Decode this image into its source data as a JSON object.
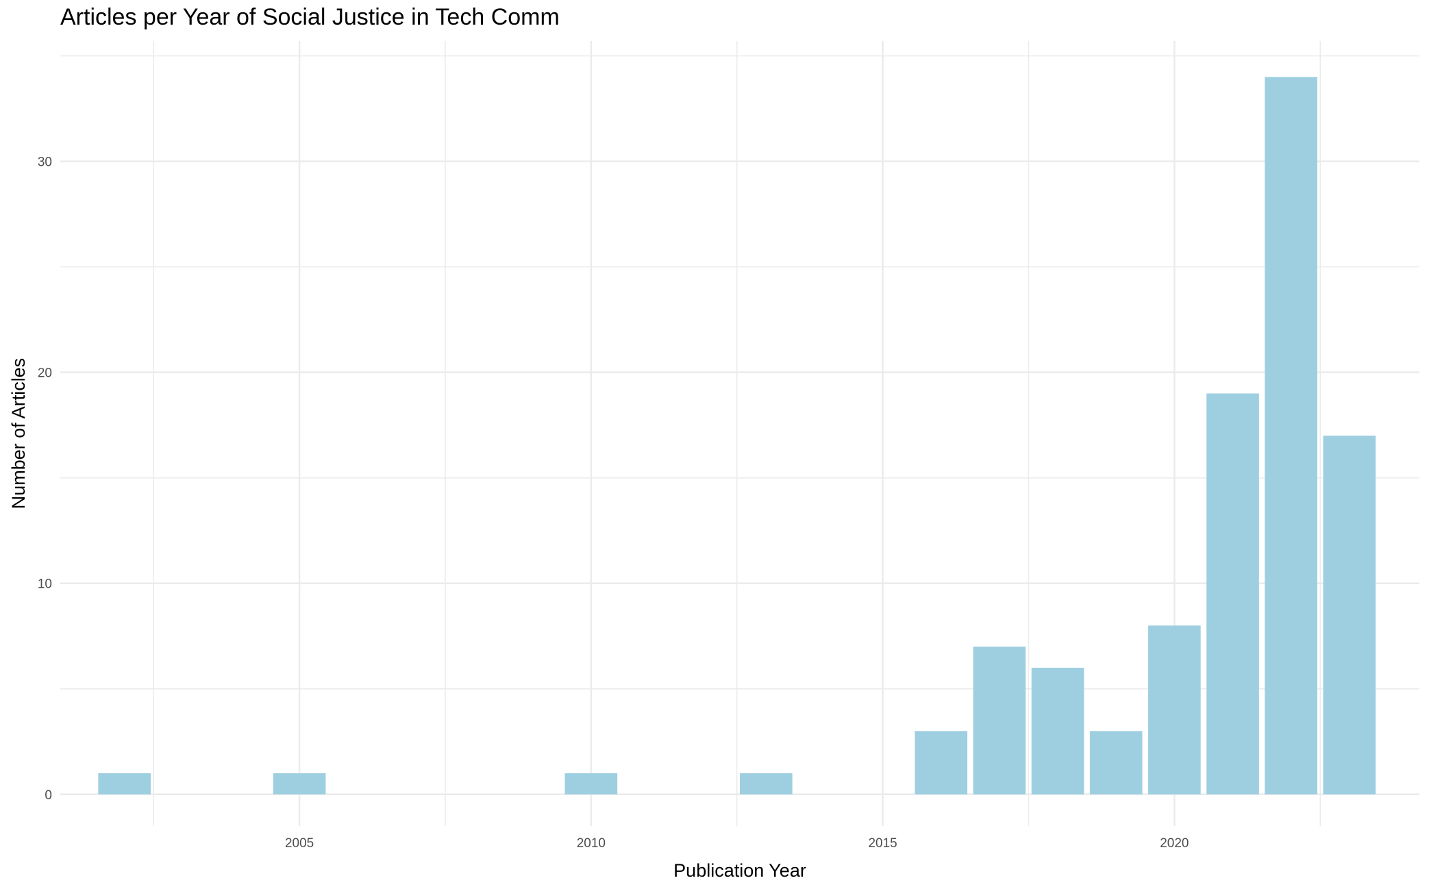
{
  "chart_data": {
    "type": "bar",
    "title": "Articles per Year of Social Justice in Tech Comm",
    "xlabel": "Publication Year",
    "ylabel": "Number of Articles",
    "x": [
      2002,
      2005,
      2010,
      2013,
      2016,
      2017,
      2018,
      2019,
      2020,
      2021,
      2022,
      2023
    ],
    "values": [
      1,
      1,
      1,
      1,
      3,
      7,
      6,
      3,
      8,
      19,
      34,
      17
    ],
    "xlim": [
      2000.9,
      2024.2
    ],
    "ylim": [
      -1.5,
      35.7
    ],
    "x_ticks": [
      2005,
      2010,
      2015,
      2020
    ],
    "y_ticks": [
      0,
      10,
      20,
      30
    ],
    "bar_color": "#9ecfe0",
    "grid": true,
    "grid_color": "#ebebeb",
    "background": "#ffffff"
  }
}
